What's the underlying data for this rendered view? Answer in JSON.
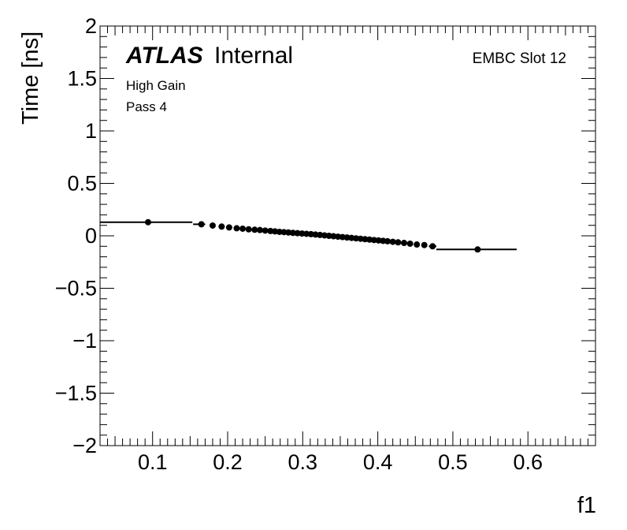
{
  "chart_data": {
    "type": "scatter",
    "xlabel": "f1",
    "ylabel": "Time [ns]",
    "xlim": [
      0.03,
      0.69
    ],
    "ylim": [
      -2,
      2
    ],
    "x_major_ticks": [
      0.1,
      0.2,
      0.3,
      0.4,
      0.5,
      0.6
    ],
    "x_tick_labels": [
      "0.1",
      "0.2",
      "0.3",
      "0.4",
      "0.5",
      "0.6"
    ],
    "y_major_ticks": [
      -2,
      -1.5,
      -1,
      -0.5,
      0,
      0.5,
      1,
      1.5,
      2
    ],
    "y_tick_labels": [
      "−2",
      "−1.5",
      "−1",
      "−0.5",
      "0",
      "0.5",
      "1",
      "1.5",
      "2"
    ],
    "grid": false,
    "annotations": {
      "atlas": "ATLAS",
      "internal": "Internal",
      "gain": "High Gain",
      "pass": "Pass 4",
      "slot": "EMBC Slot 12"
    },
    "points": [
      {
        "x": 0.094,
        "y": 0.13,
        "xerr_lo": 0.064,
        "xerr_hi": 0.059
      },
      {
        "x": 0.165,
        "y": 0.11,
        "xerr_lo": 0.011,
        "xerr_hi": 0.005
      },
      {
        "x": 0.18,
        "y": 0.098,
        "xerr_lo": 0.0,
        "xerr_hi": 0.0
      },
      {
        "x": 0.192,
        "y": 0.088,
        "xerr_lo": 0.0,
        "xerr_hi": 0.0
      },
      {
        "x": 0.202,
        "y": 0.08,
        "xerr_lo": 0.0,
        "xerr_hi": 0.0
      },
      {
        "x": 0.212,
        "y": 0.072,
        "xerr_lo": 0.0,
        "xerr_hi": 0.0
      },
      {
        "x": 0.22,
        "y": 0.068,
        "xerr_lo": 0.0,
        "xerr_hi": 0.0
      },
      {
        "x": 0.228,
        "y": 0.062,
        "xerr_lo": 0.0,
        "xerr_hi": 0.0
      },
      {
        "x": 0.236,
        "y": 0.058,
        "xerr_lo": 0.0,
        "xerr_hi": 0.0
      },
      {
        "x": 0.243,
        "y": 0.055,
        "xerr_lo": 0.0,
        "xerr_hi": 0.0
      },
      {
        "x": 0.25,
        "y": 0.05,
        "xerr_lo": 0.0,
        "xerr_hi": 0.0
      },
      {
        "x": 0.257,
        "y": 0.046,
        "xerr_lo": 0.0,
        "xerr_hi": 0.0
      },
      {
        "x": 0.263,
        "y": 0.042,
        "xerr_lo": 0.0,
        "xerr_hi": 0.0
      },
      {
        "x": 0.269,
        "y": 0.038,
        "xerr_lo": 0.0,
        "xerr_hi": 0.0
      },
      {
        "x": 0.275,
        "y": 0.035,
        "xerr_lo": 0.0,
        "xerr_hi": 0.0
      },
      {
        "x": 0.281,
        "y": 0.032,
        "xerr_lo": 0.0,
        "xerr_hi": 0.0
      },
      {
        "x": 0.287,
        "y": 0.028,
        "xerr_lo": 0.0,
        "xerr_hi": 0.0
      },
      {
        "x": 0.293,
        "y": 0.025,
        "xerr_lo": 0.0,
        "xerr_hi": 0.0
      },
      {
        "x": 0.299,
        "y": 0.022,
        "xerr_lo": 0.0,
        "xerr_hi": 0.0
      },
      {
        "x": 0.305,
        "y": 0.019,
        "xerr_lo": 0.0,
        "xerr_hi": 0.0
      },
      {
        "x": 0.311,
        "y": 0.016,
        "xerr_lo": 0.0,
        "xerr_hi": 0.0
      },
      {
        "x": 0.317,
        "y": 0.012,
        "xerr_lo": 0.0,
        "xerr_hi": 0.0
      },
      {
        "x": 0.323,
        "y": 0.008,
        "xerr_lo": 0.0,
        "xerr_hi": 0.0
      },
      {
        "x": 0.329,
        "y": 0.004,
        "xerr_lo": 0.0,
        "xerr_hi": 0.0
      },
      {
        "x": 0.335,
        "y": 0.0,
        "xerr_lo": 0.0,
        "xerr_hi": 0.0
      },
      {
        "x": 0.341,
        "y": -0.004,
        "xerr_lo": 0.0,
        "xerr_hi": 0.0
      },
      {
        "x": 0.347,
        "y": -0.008,
        "xerr_lo": 0.0,
        "xerr_hi": 0.0
      },
      {
        "x": 0.353,
        "y": -0.012,
        "xerr_lo": 0.0,
        "xerr_hi": 0.0
      },
      {
        "x": 0.359,
        "y": -0.016,
        "xerr_lo": 0.0,
        "xerr_hi": 0.0
      },
      {
        "x": 0.365,
        "y": -0.02,
        "xerr_lo": 0.0,
        "xerr_hi": 0.0
      },
      {
        "x": 0.371,
        "y": -0.024,
        "xerr_lo": 0.0,
        "xerr_hi": 0.0
      },
      {
        "x": 0.377,
        "y": -0.028,
        "xerr_lo": 0.0,
        "xerr_hi": 0.0
      },
      {
        "x": 0.383,
        "y": -0.032,
        "xerr_lo": 0.0,
        "xerr_hi": 0.0
      },
      {
        "x": 0.389,
        "y": -0.036,
        "xerr_lo": 0.0,
        "xerr_hi": 0.0
      },
      {
        "x": 0.395,
        "y": -0.04,
        "xerr_lo": 0.0,
        "xerr_hi": 0.0
      },
      {
        "x": 0.401,
        "y": -0.044,
        "xerr_lo": 0.0,
        "xerr_hi": 0.0
      },
      {
        "x": 0.407,
        "y": -0.048,
        "xerr_lo": 0.0,
        "xerr_hi": 0.0
      },
      {
        "x": 0.413,
        "y": -0.052,
        "xerr_lo": 0.0,
        "xerr_hi": 0.0
      },
      {
        "x": 0.42,
        "y": -0.057,
        "xerr_lo": 0.0,
        "xerr_hi": 0.0
      },
      {
        "x": 0.427,
        "y": -0.062,
        "xerr_lo": 0.0,
        "xerr_hi": 0.0
      },
      {
        "x": 0.435,
        "y": -0.068,
        "xerr_lo": 0.0,
        "xerr_hi": 0.0
      },
      {
        "x": 0.443,
        "y": -0.075,
        "xerr_lo": 0.0,
        "xerr_hi": 0.0
      },
      {
        "x": 0.452,
        "y": -0.083,
        "xerr_lo": 0.0,
        "xerr_hi": 0.0
      },
      {
        "x": 0.462,
        "y": -0.088,
        "xerr_lo": 0.0,
        "xerr_hi": 0.0
      },
      {
        "x": 0.473,
        "y": -0.1,
        "xerr_lo": 0.005,
        "xerr_hi": 0.005
      },
      {
        "x": 0.533,
        "y": -0.13,
        "xerr_lo": 0.055,
        "xerr_hi": 0.052
      }
    ]
  }
}
